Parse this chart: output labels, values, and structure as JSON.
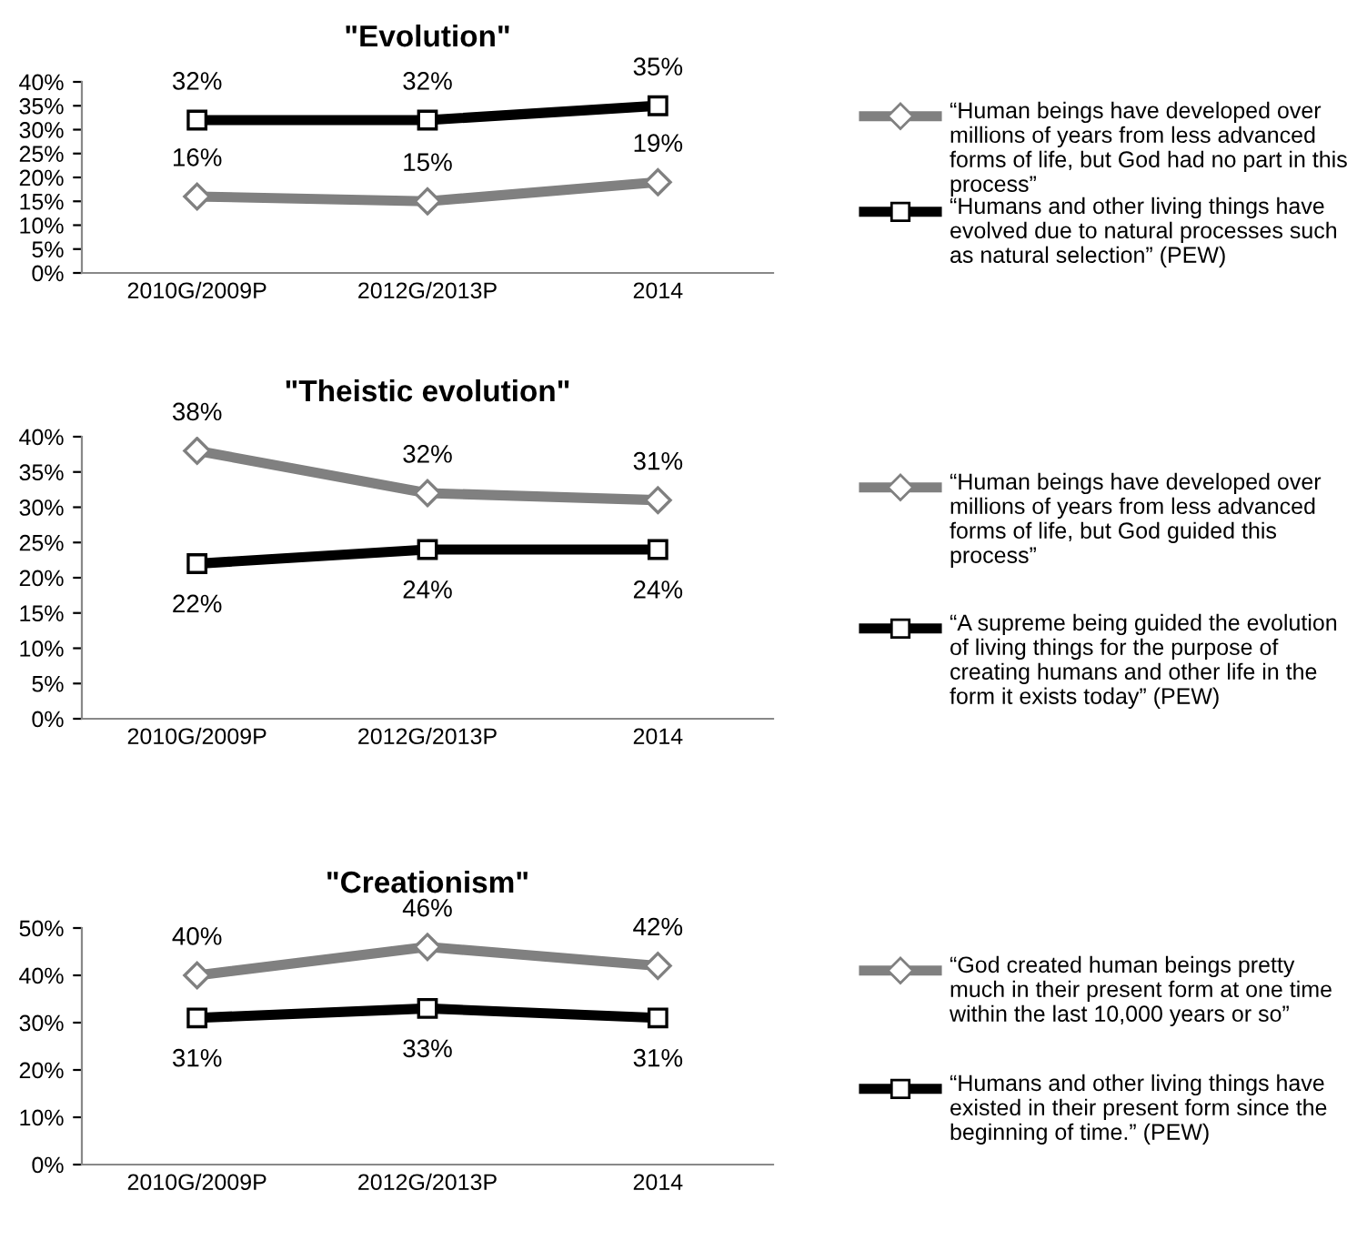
{
  "chart_data": [
    {
      "type": "line",
      "title": "\"Evolution\"",
      "categories": [
        "2010G/2009P",
        "2012G/2013P",
        "2014"
      ],
      "ylim": [
        0,
        40
      ],
      "yticks": [
        {
          "value": 0,
          "label": "0%"
        },
        {
          "value": 5,
          "label": "5%"
        },
        {
          "value": 10,
          "label": "10%"
        },
        {
          "value": 15,
          "label": "15%"
        },
        {
          "value": 20,
          "label": "20%"
        },
        {
          "value": 25,
          "label": "25%"
        },
        {
          "value": 30,
          "label": "30%"
        },
        {
          "value": 35,
          "label": "35%"
        },
        {
          "value": 40,
          "label": "40%"
        }
      ],
      "grid": false,
      "legend": "right",
      "series": [
        {
          "name": "“Human beings have developed over millions of years from less advanced forms of life, but God had no part in this process”",
          "color": "#808080",
          "marker": "diamond",
          "values": [
            16,
            15,
            19
          ],
          "value_labels": [
            "16%",
            "15%",
            "19%"
          ]
        },
        {
          "name": "“Humans and other living things have evolved due to natural processes such as natural selection” (PEW)",
          "color": "#000000",
          "marker": "square",
          "values": [
            32,
            32,
            35
          ],
          "value_labels": [
            "32%",
            "32%",
            "35%"
          ]
        }
      ]
    },
    {
      "type": "line",
      "title": "\"Theistic evolution\"",
      "categories": [
        "2010G/2009P",
        "2012G/2013P",
        "2014"
      ],
      "ylim": [
        0,
        40
      ],
      "yticks": [
        {
          "value": 0,
          "label": "0%"
        },
        {
          "value": 5,
          "label": "5%"
        },
        {
          "value": 10,
          "label": "10%"
        },
        {
          "value": 15,
          "label": "15%"
        },
        {
          "value": 20,
          "label": "20%"
        },
        {
          "value": 25,
          "label": "25%"
        },
        {
          "value": 30,
          "label": "30%"
        },
        {
          "value": 35,
          "label": "35%"
        },
        {
          "value": 40,
          "label": "40%"
        }
      ],
      "grid": false,
      "legend": "right",
      "series": [
        {
          "name": "“Human beings have developed over millions of years from less advanced forms of life, but God guided this process”",
          "color": "#808080",
          "marker": "diamond",
          "values": [
            38,
            32,
            31
          ],
          "value_labels": [
            "38%",
            "32%",
            "31%"
          ]
        },
        {
          "name": "“A supreme being guided the evolution of living things for the purpose of creating humans and other life in the form it exists today” (PEW)",
          "color": "#000000",
          "marker": "square",
          "values": [
            22,
            24,
            24
          ],
          "value_labels": [
            "22%",
            "24%",
            "24%"
          ]
        }
      ]
    },
    {
      "type": "line",
      "title": "\"Creationism\"",
      "categories": [
        "2010G/2009P",
        "2012G/2013P",
        "2014"
      ],
      "ylim": [
        0,
        50
      ],
      "yticks": [
        {
          "value": 0,
          "label": "0%"
        },
        {
          "value": 10,
          "label": "10%"
        },
        {
          "value": 20,
          "label": "20%"
        },
        {
          "value": 30,
          "label": "30%"
        },
        {
          "value": 40,
          "label": "40%"
        },
        {
          "value": 50,
          "label": "50%"
        }
      ],
      "grid": false,
      "legend": "right",
      "series": [
        {
          "name": "“God created human beings pretty much in their present form at one time within the last 10,000 years or so”",
          "color": "#808080",
          "marker": "diamond",
          "values": [
            40,
            46,
            42
          ],
          "value_labels": [
            "40%",
            "46%",
            "42%"
          ]
        },
        {
          "name": "“Humans and other living things have existed in their present form since the beginning of time.” (PEW)",
          "color": "#000000",
          "marker": "square",
          "values": [
            31,
            33,
            31
          ],
          "value_labels": [
            "31%",
            "33%",
            "31%"
          ]
        }
      ]
    }
  ]
}
